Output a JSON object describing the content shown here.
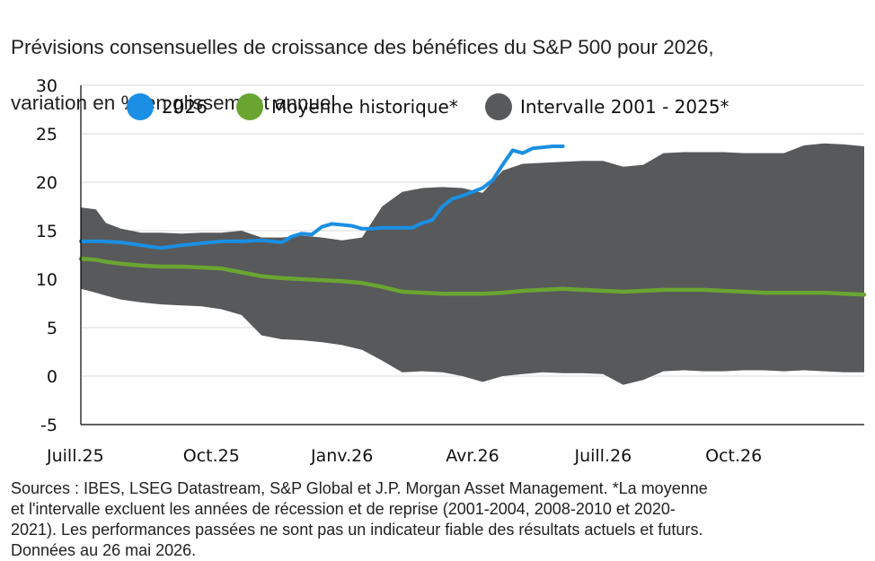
{
  "title_lines": [
    "Prévisions consensuelles de croissance des bénéfices du S&P 500 pour 2026,",
    "variation en % en glissement annuel"
  ],
  "source_lines": [
    "Sources : IBES, LSEG Datastream, S&P Global et J.P. Morgan Asset Management. *La moyenne",
    "et l'intervalle excluent les années de récession et de reprise (2001-2004, 2008-2010 et 2020-",
    "2021). Les performances passées ne sont pas un indicateur fiable des résultats actuels et futurs.",
    "Données au 26 mai 2026."
  ],
  "chart_data": {
    "type": "line",
    "title": "Prévisions consensuelles de croissance des bénéfices du S&P 500 pour 2026, variation en % en glissement annuel",
    "x_unit": "week",
    "x_ticks": [
      {
        "label": "Juill.25",
        "x": 0
      },
      {
        "label": "Oct.25",
        "x": 13
      },
      {
        "label": "Janv.26",
        "x": 26
      },
      {
        "label": "Avr.26",
        "x": 39
      },
      {
        "label": "Juill.26",
        "x": 52
      },
      {
        "label": "Oct.26",
        "x": 65
      }
    ],
    "xlim": [
      0,
      78
    ],
    "ylim": [
      -5,
      30
    ],
    "y_ticks": [
      -5,
      0,
      5,
      10,
      15,
      20,
      25,
      30
    ],
    "grid": "horizontal",
    "legend_position": "top",
    "legend": [
      {
        "label": "2026",
        "color": "#1a8fe3",
        "kind": "line"
      },
      {
        "label": "Moyenne historique*",
        "color": "#6aa532",
        "kind": "line"
      },
      {
        "label": "Intervalle 2001 - 2025*",
        "color": "#58595b",
        "kind": "area"
      }
    ],
    "band": {
      "name": "Intervalle 2001 - 2025*",
      "color": "#58595b",
      "x": [
        0,
        1.5,
        2.5,
        4,
        6,
        8,
        10,
        12,
        14,
        16,
        18,
        20,
        22,
        24,
        26,
        28,
        30,
        32,
        34,
        36,
        38,
        40,
        42,
        44,
        46,
        48,
        50,
        52,
        54,
        56,
        58,
        60,
        62,
        64,
        66,
        68,
        70,
        72,
        74,
        76,
        78
      ],
      "upper": [
        17.4,
        17.2,
        15.8,
        15.2,
        14.8,
        14.8,
        14.7,
        14.8,
        14.8,
        15.0,
        14.3,
        14.3,
        14.5,
        14.3,
        14.0,
        14.3,
        17.5,
        19.0,
        19.4,
        19.5,
        19.4,
        18.9,
        21.2,
        21.9,
        22.0,
        22.1,
        22.2,
        22.2,
        21.6,
        21.8,
        23.0,
        23.1,
        23.1,
        23.1,
        23.0,
        23.0,
        23.0,
        23.8,
        24.0,
        23.9,
        23.7
      ],
      "lower": [
        9.0,
        8.6,
        8.3,
        7.9,
        7.6,
        7.4,
        7.3,
        7.2,
        6.9,
        6.3,
        4.2,
        3.8,
        3.7,
        3.5,
        3.2,
        2.7,
        1.6,
        0.4,
        0.5,
        0.4,
        0.0,
        -0.6,
        0.0,
        0.2,
        0.4,
        0.3,
        0.3,
        0.2,
        -0.9,
        -0.4,
        0.5,
        0.6,
        0.5,
        0.5,
        0.6,
        0.6,
        0.5,
        0.6,
        0.5,
        0.4,
        0.4
      ]
    },
    "series": [
      {
        "name": "2026",
        "color": "#1a8fe3",
        "x": [
          0,
          2,
          4,
          6,
          8,
          10,
          12,
          14,
          16,
          18,
          19,
          20,
          21,
          22,
          23,
          24,
          25,
          26,
          27,
          28,
          29,
          30,
          31,
          32,
          33,
          34,
          35,
          36,
          37,
          38,
          39,
          40,
          41,
          42,
          43,
          44,
          45,
          46,
          47,
          48
        ],
        "y": [
          13.9,
          13.9,
          13.8,
          13.5,
          13.2,
          13.5,
          13.7,
          13.9,
          13.9,
          14.0,
          13.9,
          13.8,
          14.4,
          14.7,
          14.6,
          15.4,
          15.7,
          15.6,
          15.5,
          15.2,
          15.2,
          15.3,
          15.3,
          15.3,
          15.3,
          15.8,
          16.1,
          17.5,
          18.3,
          18.6,
          19.0,
          19.4,
          20.2,
          21.8,
          23.3,
          23.0,
          23.5,
          23.6,
          23.7,
          23.7
        ]
      },
      {
        "name": "Moyenne historique*",
        "color": "#6aa532",
        "x": [
          0,
          1.5,
          2.5,
          4,
          6,
          8,
          10,
          12,
          14,
          16,
          18,
          20,
          22,
          24,
          26,
          28,
          30,
          32,
          34,
          36,
          38,
          40,
          42,
          44,
          46,
          48,
          50,
          52,
          54,
          56,
          58,
          60,
          62,
          64,
          66,
          68,
          70,
          72,
          74,
          76,
          78
        ],
        "y": [
          12.1,
          12.0,
          11.8,
          11.6,
          11.4,
          11.3,
          11.3,
          11.2,
          11.1,
          10.7,
          10.3,
          10.1,
          10.0,
          9.9,
          9.8,
          9.6,
          9.2,
          8.7,
          8.6,
          8.5,
          8.5,
          8.5,
          8.6,
          8.8,
          8.9,
          9.0,
          8.9,
          8.8,
          8.7,
          8.8,
          8.9,
          8.9,
          8.9,
          8.8,
          8.7,
          8.6,
          8.6,
          8.6,
          8.6,
          8.5,
          8.4
        ]
      }
    ]
  }
}
